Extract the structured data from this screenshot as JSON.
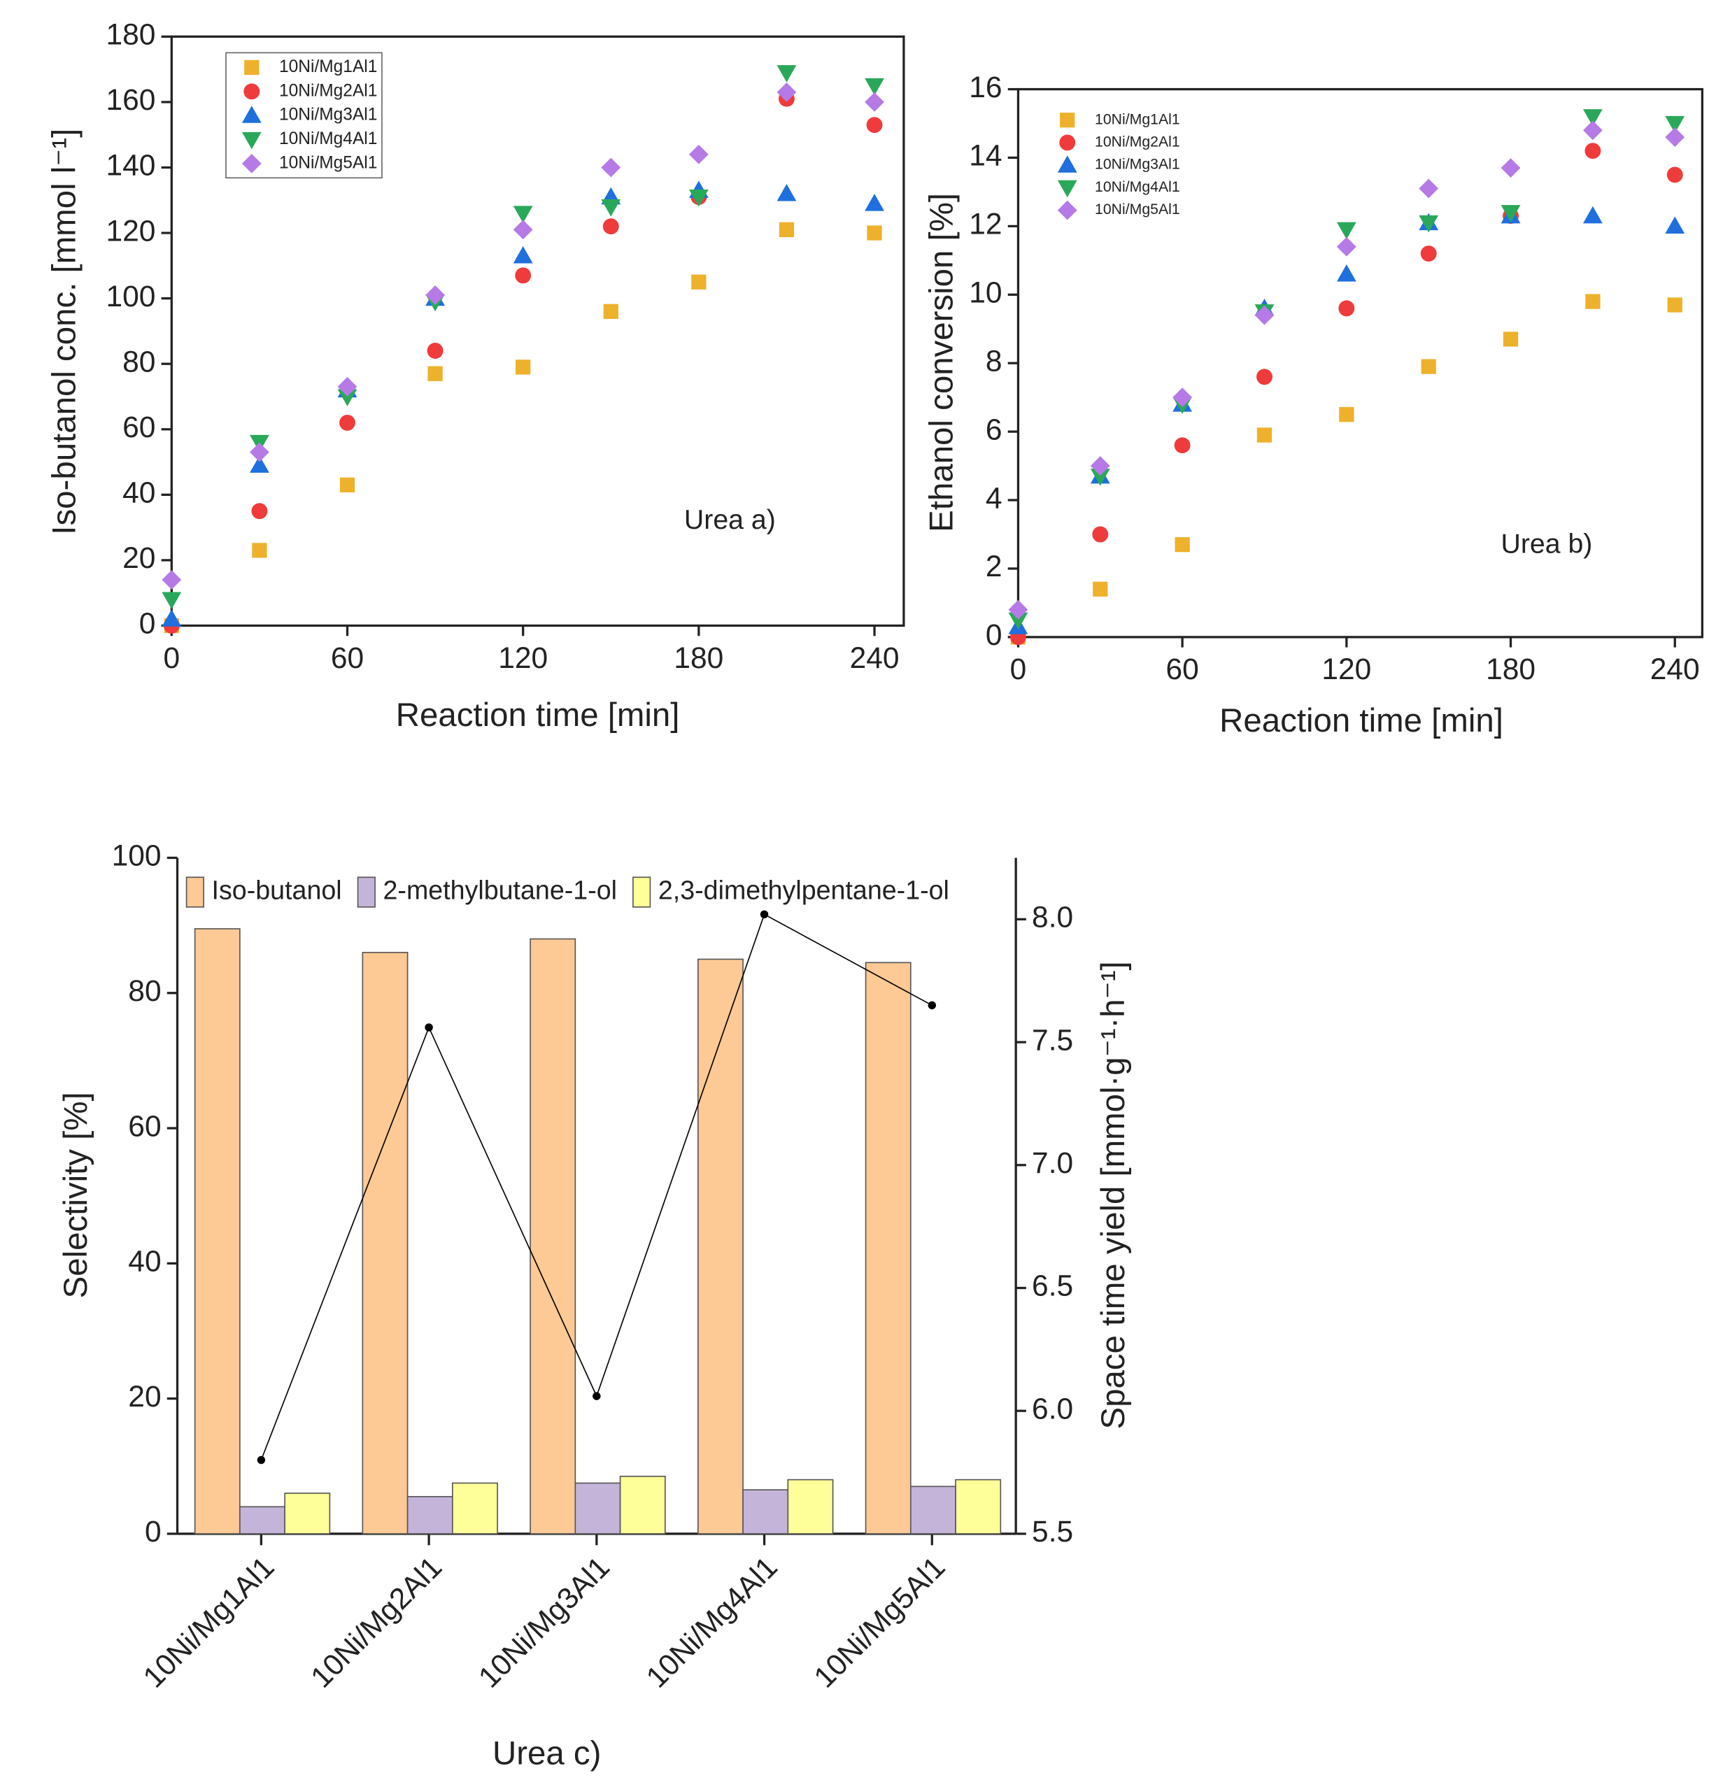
{
  "chart_data": [
    {
      "type": "scatter",
      "xlabel": "Reaction time [min]",
      "ylabel": "Iso-butanol conc. [mmol l⁻¹]",
      "annotation": "Urea a)",
      "x": [
        0,
        30,
        60,
        90,
        120,
        150,
        180,
        210,
        240
      ],
      "xlim": [
        0,
        250
      ],
      "xticks": [
        0,
        60,
        120,
        180,
        240
      ],
      "ylim": [
        0,
        180
      ],
      "yticks": [
        0,
        20,
        40,
        60,
        80,
        100,
        120,
        140,
        160,
        180
      ],
      "legend": "upper left",
      "legend_frame": true,
      "series": [
        {
          "name": "10Ni/Mg1Al1",
          "color": "#eeb12b",
          "marker": "square",
          "values": [
            0,
            23,
            43,
            77,
            79,
            96,
            105,
            121,
            120
          ]
        },
        {
          "name": "10Ni/Mg2Al1",
          "color": "#ef3b3b",
          "marker": "circle",
          "values": [
            0,
            35,
            62,
            84,
            107,
            122,
            131,
            161,
            153
          ]
        },
        {
          "name": "10Ni/Mg3Al1",
          "color": "#1f6fde",
          "marker": "triangle-up",
          "values": [
            2,
            49,
            72,
            100,
            113,
            131,
            133,
            132,
            129
          ]
        },
        {
          "name": "10Ni/Mg4Al1",
          "color": "#2aa85a",
          "marker": "triangle-down",
          "values": [
            8,
            56,
            70,
            99,
            126,
            128,
            131,
            169,
            165
          ]
        },
        {
          "name": "10Ni/Mg5Al1",
          "color": "#b57ae6",
          "marker": "diamond",
          "values": [
            14,
            53,
            73,
            101,
            121,
            140,
            144,
            163,
            160
          ]
        }
      ]
    },
    {
      "type": "scatter",
      "xlabel": "Reaction time [min]",
      "ylabel": "Ethanol conversion [%]",
      "annotation": "Urea b)",
      "x": [
        0,
        30,
        60,
        90,
        120,
        150,
        180,
        210,
        240
      ],
      "xlim": [
        0,
        250
      ],
      "xticks": [
        0,
        60,
        120,
        180,
        240
      ],
      "ylim": [
        0,
        16
      ],
      "yticks": [
        0,
        2,
        4,
        6,
        8,
        10,
        12,
        14,
        16
      ],
      "legend": "upper left",
      "legend_frame": false,
      "series": [
        {
          "name": "10Ni/Mg1Al1",
          "color": "#eeb12b",
          "marker": "square",
          "values": [
            0,
            1.4,
            2.7,
            5.9,
            6.5,
            7.9,
            8.7,
            9.8,
            9.7
          ]
        },
        {
          "name": "10Ni/Mg2Al1",
          "color": "#ef3b3b",
          "marker": "circle",
          "values": [
            0,
            3.0,
            5.6,
            7.6,
            9.6,
            11.2,
            12.3,
            14.2,
            13.5
          ]
        },
        {
          "name": "10Ni/Mg3Al1",
          "color": "#1f6fde",
          "marker": "triangle-up",
          "values": [
            0.3,
            4.7,
            6.8,
            9.6,
            10.6,
            12.1,
            12.3,
            12.3,
            12.0
          ]
        },
        {
          "name": "10Ni/Mg4Al1",
          "color": "#2aa85a",
          "marker": "triangle-down",
          "values": [
            0.5,
            4.7,
            6.8,
            9.5,
            11.9,
            12.1,
            12.4,
            15.2,
            15.0
          ]
        },
        {
          "name": "10Ni/Mg5Al1",
          "color": "#b57ae6",
          "marker": "diamond",
          "values": [
            0.8,
            5.0,
            7.0,
            9.4,
            11.4,
            13.1,
            13.7,
            14.8,
            14.6
          ]
        }
      ]
    },
    {
      "type": "bar",
      "xlabel": "Urea c)",
      "ylabel": "Selectivity [%]",
      "y2label": "Space time yield [mmol·g⁻¹·h⁻¹]",
      "categories": [
        "10Ni/Mg1Al1",
        "10Ni/Mg2Al1",
        "10Ni/Mg3Al1",
        "10Ni/Mg4Al1",
        "10Ni/Mg5Al1"
      ],
      "ylim": [
        0,
        100
      ],
      "yticks": [
        0,
        20,
        40,
        60,
        80,
        100
      ],
      "y2lim": [
        5.5,
        8.25
      ],
      "y2ticks": [
        5.5,
        {
          "value": 6,
          "label": "6.0"
        },
        6.5,
        {
          "value": 7,
          "label": "7.0"
        },
        7.5,
        {
          "value": 8,
          "label": "8.0"
        }
      ],
      "legend": "upper center",
      "series": [
        {
          "name": "Iso-butanol",
          "color": "#fdc994",
          "values": [
            89.5,
            86,
            88,
            85,
            84.5
          ]
        },
        {
          "name": "2-methylbutane-1-ol",
          "color": "#c5b4da",
          "values": [
            4,
            5.5,
            7.5,
            6.5,
            7
          ]
        },
        {
          "name": "2,3-dimethylpentane-1-ol",
          "color": "#ffff99",
          "values": [
            6,
            7.5,
            8.5,
            8,
            8
          ]
        },
        {
          "type": "line",
          "axis": "y2",
          "color": "#000000",
          "values": [
            5.8,
            7.56,
            6.06,
            8.02,
            7.65
          ]
        }
      ]
    }
  ]
}
